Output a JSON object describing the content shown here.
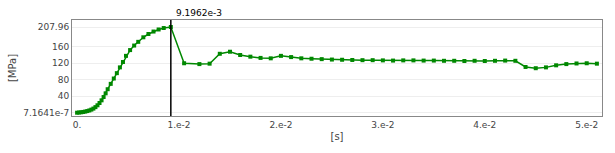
{
  "chart_data": {
    "type": "line",
    "xlabel": "[s]",
    "ylabel": "[MPa]",
    "x": [
      0.0,
      0.0002,
      0.0004,
      0.0006,
      0.0008,
      0.001,
      0.0012,
      0.0014,
      0.0016,
      0.0018,
      0.002,
      0.0022,
      0.0024,
      0.0026,
      0.0028,
      0.003,
      0.0033,
      0.0036,
      0.0039,
      0.0042,
      0.0045,
      0.0048,
      0.0052,
      0.0056,
      0.006,
      0.0065,
      0.007,
      0.0075,
      0.008,
      0.0085,
      0.0091962,
      0.0105,
      0.012,
      0.013,
      0.014,
      0.015,
      0.016,
      0.017,
      0.018,
      0.019,
      0.02,
      0.021,
      0.022,
      0.023,
      0.024,
      0.025,
      0.026,
      0.027,
      0.028,
      0.029,
      0.03,
      0.031,
      0.032,
      0.033,
      0.034,
      0.035,
      0.036,
      0.037,
      0.038,
      0.039,
      0.04,
      0.041,
      0.042,
      0.043,
      0.044,
      0.045,
      0.046,
      0.047,
      0.048,
      0.049,
      0.05,
      0.051
    ],
    "series": [
      {
        "color": "#008800",
        "marker": "square",
        "values": [
          7.1641e-07,
          0.5,
          1.0,
          1.8,
          2.8,
          4.0,
          5.5,
          7.5,
          10.0,
          13.5,
          18.0,
          23.5,
          30.0,
          38.0,
          47.0,
          57.0,
          70.0,
          83.0,
          96.0,
          110.0,
          123.0,
          138.0,
          152.0,
          163.0,
          172.0,
          183.0,
          191.0,
          197.0,
          202.0,
          205.5,
          207.96,
          120.0,
          118.0,
          119.0,
          143.0,
          148.0,
          140.0,
          136.0,
          133.0,
          132.0,
          138.0,
          135.0,
          132.0,
          131.0,
          130.0,
          129.0,
          128.5,
          128.0,
          127.5,
          127.5,
          127.0,
          126.5,
          127.0,
          127.0,
          126.5,
          126.5,
          126.0,
          126.0,
          125.5,
          126.0,
          125.5,
          126.0,
          126.5,
          126.0,
          111.0,
          108.0,
          110.0,
          115.0,
          118.0,
          119.5,
          120.0,
          119.0
        ]
      }
    ],
    "xlim": [
      -0.0005,
      0.0515
    ],
    "ylim": [
      -8,
      225
    ],
    "xticks": [
      {
        "value": 0.0,
        "label": "0."
      },
      {
        "value": 0.01,
        "label": "1.e-2"
      },
      {
        "value": 0.02,
        "label": "2.e-2"
      },
      {
        "value": 0.03,
        "label": "3.e-2"
      },
      {
        "value": 0.04,
        "label": "4.e-2"
      },
      {
        "value": 0.05,
        "label": "5.e-2"
      }
    ],
    "yticks": [
      {
        "value": 7.1641e-07,
        "label": "7.1641e-7"
      },
      40,
      80,
      120,
      160,
      207.96
    ],
    "grid": "y",
    "vline": {
      "x": 0.0091962,
      "label": "9.1962e-3",
      "color": "#000000"
    }
  }
}
